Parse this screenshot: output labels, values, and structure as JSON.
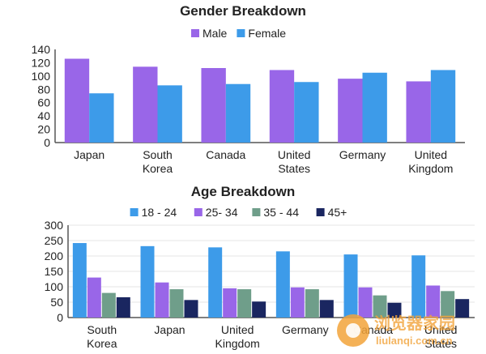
{
  "chart_data": [
    {
      "type": "bar",
      "title": "Gender Breakdown",
      "categories": [
        "Japan",
        "South Korea",
        "Canada",
        "United States",
        "Germany",
        "United Kingdom"
      ],
      "series": [
        {
          "name": "Male",
          "values": [
            126,
            114,
            112,
            109,
            96,
            92
          ],
          "color": "#9966e8"
        },
        {
          "name": "Female",
          "values": [
            74,
            86,
            88,
            91,
            105,
            109
          ],
          "color": "#3d9be9"
        }
      ],
      "yticks": [
        0,
        20,
        40,
        60,
        80,
        100,
        120,
        140
      ],
      "ylim": [
        0,
        140
      ],
      "legend": "top-center",
      "grid": false
    },
    {
      "type": "bar",
      "title": "Age Breakdown",
      "categories": [
        "South Korea",
        "Japan",
        "United Kingdom",
        "Germany",
        "Canada",
        "United States"
      ],
      "series": [
        {
          "name": "18 - 24",
          "values": [
            242,
            232,
            228,
            215,
            205,
            202
          ],
          "color": "#3d9be9"
        },
        {
          "name": "25- 34",
          "values": [
            130,
            114,
            95,
            98,
            98,
            104
          ],
          "color": "#9966e8"
        },
        {
          "name": "35 - 44",
          "values": [
            80,
            92,
            92,
            92,
            72,
            86
          ],
          "color": "#6f9e8a"
        },
        {
          "name": "45+",
          "values": [
            66,
            57,
            52,
            57,
            48,
            60
          ],
          "color": "#1a2660"
        }
      ],
      "yticks": [
        0,
        50,
        100,
        150,
        200,
        250,
        300
      ],
      "ylim": [
        0,
        300
      ],
      "legend": "top-center",
      "grid": true
    }
  ],
  "watermark": {
    "title": "浏览器家园",
    "url": "liulanqi.com.cn",
    "logo_color": "#f2a33a"
  }
}
